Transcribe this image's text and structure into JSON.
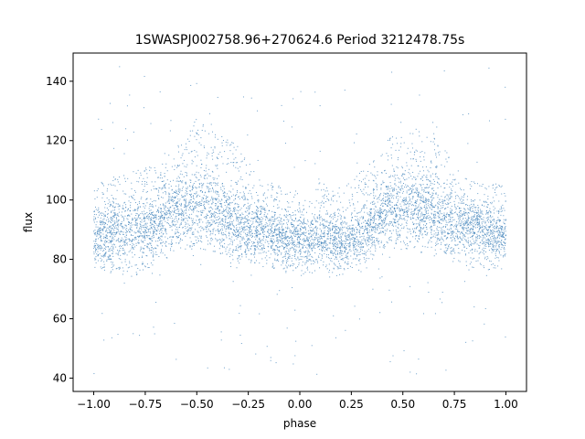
{
  "chart_data": {
    "type": "scatter",
    "title": "1SWASPJ002758.96+270624.6 Period 3212478.75s",
    "xlabel": "phase",
    "ylabel": "flux",
    "xlim": [
      -1.1,
      1.1
    ],
    "ylim": [
      35.5,
      149.5
    ],
    "xticks": [
      -1.0,
      -0.75,
      -0.5,
      -0.25,
      0.0,
      0.25,
      0.5,
      0.75,
      1.0
    ],
    "xtick_labels": [
      "−1.00",
      "−0.75",
      "−0.50",
      "−0.25",
      "0.00",
      "0.25",
      "0.50",
      "0.75",
      "1.00"
    ],
    "yticks": [
      40,
      60,
      80,
      100,
      120,
      140
    ],
    "ytick_labels": [
      "40",
      "60",
      "80",
      "100",
      "120",
      "140"
    ],
    "grid": false,
    "marker_color": "#3b7fb8",
    "series": [
      {
        "mean_profile": {
          "phase": [
            -1.0,
            -0.95,
            -0.9,
            -0.85,
            -0.8,
            -0.75,
            -0.7,
            -0.65,
            -0.6,
            -0.55,
            -0.5,
            -0.45,
            -0.4,
            -0.35,
            -0.3,
            -0.25,
            -0.2,
            -0.15,
            -0.1,
            -0.05,
            0.0,
            0.05,
            0.1,
            0.15,
            0.2,
            0.25,
            0.3,
            0.35,
            0.4,
            0.45,
            0.5,
            0.55,
            0.6,
            0.65,
            0.7,
            0.75,
            0.8,
            0.85,
            0.9,
            0.95,
            1.0
          ],
          "flux": [
            88,
            87,
            89,
            90,
            91,
            90,
            92,
            95,
            97,
            98,
            98,
            97,
            96,
            94,
            92,
            91,
            90,
            89,
            88,
            87,
            86,
            87,
            88,
            87,
            86,
            88,
            89,
            92,
            95,
            97,
            98,
            98,
            97,
            96,
            94,
            93,
            92,
            91,
            90,
            89,
            88
          ]
        },
        "envelope_upper": {
          "phase": [
            -1.0,
            -0.9,
            -0.8,
            -0.7,
            -0.6,
            -0.55,
            -0.5,
            -0.45,
            -0.4,
            -0.35,
            -0.3,
            -0.25,
            -0.2,
            -0.1,
            0.0,
            0.1,
            0.2,
            0.3,
            0.4,
            0.45,
            0.5,
            0.55,
            0.6,
            0.65,
            0.7,
            0.75,
            0.8,
            0.9,
            1.0
          ],
          "flux": [
            105,
            108,
            110,
            112,
            118,
            122,
            128,
            125,
            122,
            121,
            118,
            112,
            108,
            106,
            104,
            106,
            104,
            110,
            118,
            122,
            128,
            125,
            122,
            121,
            118,
            112,
            108,
            106,
            105
          ]
        },
        "envelope_lower": {
          "phase": [
            -1.0,
            -0.9,
            -0.8,
            -0.7,
            -0.6,
            -0.5,
            -0.4,
            -0.3,
            -0.2,
            -0.1,
            0.0,
            0.1,
            0.2,
            0.3,
            0.4,
            0.5,
            0.6,
            0.7,
            0.8,
            0.9,
            1.0
          ],
          "flux": [
            77,
            75,
            74,
            78,
            82,
            84,
            82,
            80,
            78,
            76,
            74,
            76,
            75,
            78,
            82,
            84,
            82,
            80,
            78,
            76,
            77
          ]
        },
        "outlier_range": [
          41,
          145
        ]
      }
    ]
  }
}
